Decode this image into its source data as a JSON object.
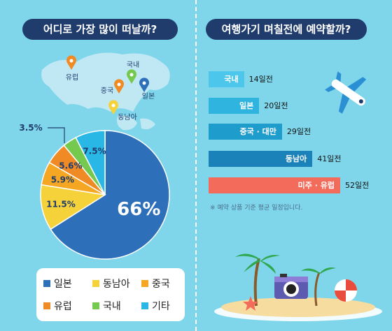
{
  "left_title": "어디로 가장 많이 떠날까?",
  "right_title": "여행가기 며칠전에 예약할까?",
  "map": {
    "pins": [
      {
        "label": "유럽",
        "color": "#f08a24"
      },
      {
        "label": "국내",
        "color": "#74c94e"
      },
      {
        "label": "중국",
        "color": "#f08a24"
      },
      {
        "label": "일본",
        "color": "#2d6fb8"
      },
      {
        "label": "동남아",
        "color": "#f6d23a"
      }
    ]
  },
  "chart_data": [
    {
      "type": "pie",
      "title": "어디로 가장 많이 떠날까?",
      "categories": [
        "일본",
        "동남아",
        "중국",
        "유럽",
        "국내",
        "기타"
      ],
      "values": [
        66,
        11.5,
        5.9,
        5.6,
        3.5,
        7.5
      ],
      "value_labels": [
        "66%",
        "11.5%",
        "5.9%",
        "5.6%",
        "3.5%",
        "7.5%"
      ],
      "colors": [
        "#2d6fb8",
        "#f6d23a",
        "#f5a623",
        "#f08a24",
        "#74c94e",
        "#29b7e6"
      ],
      "legend": "bottom"
    },
    {
      "type": "bar",
      "title": "여행가기 며칠전에 예약할까?",
      "orientation": "horizontal",
      "categories": [
        "국내",
        "일본",
        "중국 · 대만",
        "동남아",
        "미주 · 유럽"
      ],
      "values": [
        14,
        20,
        29,
        41,
        52
      ],
      "value_labels": [
        "14일전",
        "20일전",
        "29일전",
        "41일전",
        "52일전"
      ],
      "colors": [
        "#4cc6ea",
        "#2fb4e0",
        "#1e9ccc",
        "#1a82b8",
        "#f26b5b"
      ],
      "note": "※ 예약 상품 기준 평균 일정입니다."
    }
  ]
}
